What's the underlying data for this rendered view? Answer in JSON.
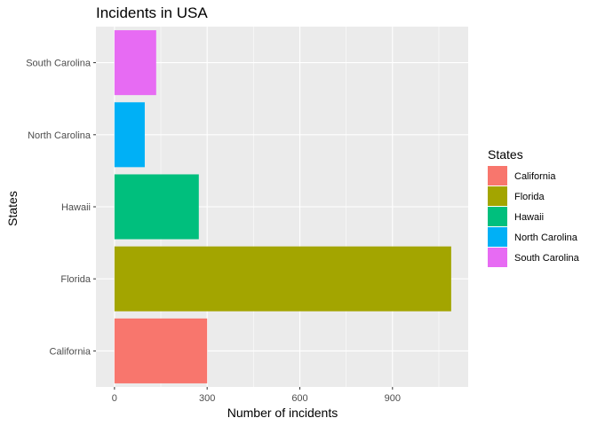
{
  "chart_data": {
    "type": "bar",
    "orientation": "horizontal",
    "title": "Incidents in USA",
    "xlabel": "Number of incidents",
    "ylabel": "States",
    "categories": [
      "California",
      "Florida",
      "Hawaii",
      "North Carolina",
      "South Carolina"
    ],
    "values": [
      300,
      1090,
      273,
      98,
      135
    ],
    "colors": [
      "#F8766D",
      "#A3A500",
      "#00BF7D",
      "#00B0F6",
      "#E76BF3"
    ],
    "xlim": [
      -60,
      1145
    ],
    "xticks": [
      0,
      300,
      600,
      900
    ],
    "xtick_labels": [
      "0",
      "300",
      "600",
      "900"
    ],
    "grid": true,
    "legend": {
      "title": "States",
      "position": "right",
      "items": [
        "California",
        "Florida",
        "Hawaii",
        "North Carolina",
        "South Carolina"
      ]
    },
    "panel_background": "#EBEBEB",
    "grid_color": "#FFFFFF"
  }
}
